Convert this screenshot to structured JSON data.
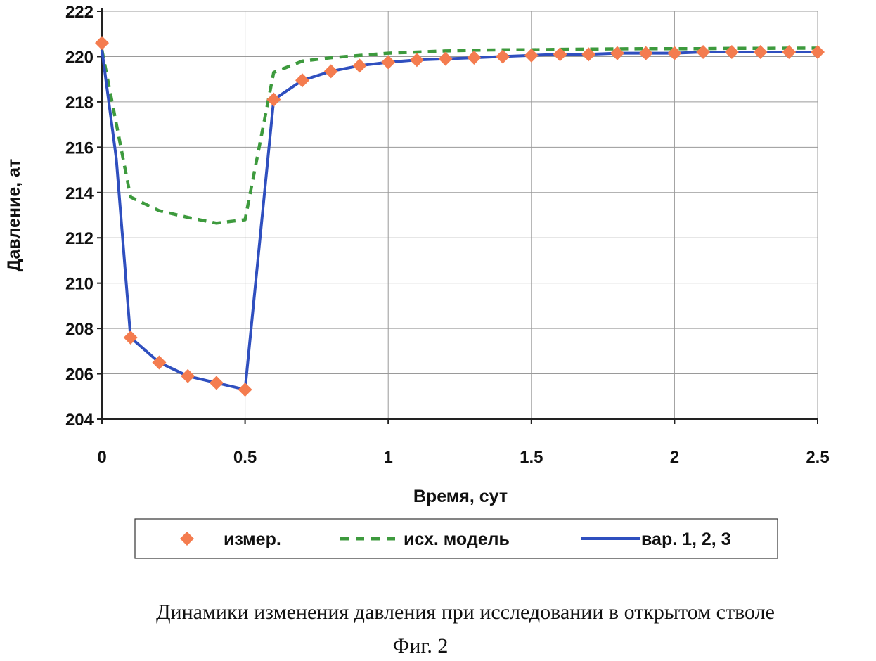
{
  "chart_data": {
    "type": "line",
    "title": "",
    "xlabel": "Время, сут",
    "ylabel": "Давление, ат",
    "xlim": [
      0,
      2.5
    ],
    "ylim": [
      204,
      222
    ],
    "x_ticks": [
      "0",
      "0.5",
      "1",
      "1.5",
      "2",
      "2.5"
    ],
    "y_ticks": [
      "204",
      "206",
      "208",
      "210",
      "212",
      "214",
      "216",
      "218",
      "220",
      "222"
    ],
    "grid": true,
    "legend_position": "bottom",
    "series": [
      {
        "name": "измер.",
        "style": "markers",
        "color": "#f47c4f",
        "x": [
          0,
          0.1,
          0.2,
          0.3,
          0.4,
          0.5,
          0.6,
          0.7,
          0.8,
          0.9,
          1.0,
          1.1,
          1.2,
          1.3,
          1.4,
          1.5,
          1.6,
          1.7,
          1.8,
          1.9,
          2.0,
          2.1,
          2.2,
          2.3,
          2.4,
          2.5
        ],
        "y": [
          220.6,
          207.6,
          206.5,
          205.9,
          205.6,
          205.3,
          218.1,
          218.95,
          219.35,
          219.6,
          219.75,
          219.85,
          219.9,
          219.95,
          220.0,
          220.05,
          220.1,
          220.1,
          220.15,
          220.15,
          220.15,
          220.2,
          220.2,
          220.2,
          220.2,
          220.2
        ]
      },
      {
        "name": "исх. модель",
        "style": "dashed",
        "color": "#3d9a3d",
        "x": [
          0,
          0.1,
          0.2,
          0.3,
          0.4,
          0.5,
          0.6,
          0.7,
          0.8,
          0.9,
          1.0,
          1.1,
          1.2,
          1.3,
          1.4,
          1.5,
          1.6,
          1.7,
          1.8,
          1.9,
          2.0,
          2.1,
          2.2,
          2.3,
          2.4,
          2.5
        ],
        "y": [
          220.3,
          213.8,
          213.2,
          212.9,
          212.65,
          212.8,
          219.3,
          219.8,
          219.95,
          220.05,
          220.15,
          220.2,
          220.25,
          220.28,
          220.3,
          220.3,
          220.32,
          220.33,
          220.34,
          220.35,
          220.35,
          220.35,
          220.36,
          220.36,
          220.37,
          220.37
        ]
      },
      {
        "name": "вар. 1, 2, 3",
        "style": "solid",
        "color": "#2f4fbf",
        "x": [
          0,
          0.05,
          0.1,
          0.2,
          0.3,
          0.4,
          0.5,
          0.6,
          0.7,
          0.8,
          0.9,
          1.0,
          1.1,
          1.2,
          1.3,
          1.4,
          1.5,
          1.6,
          1.7,
          1.8,
          1.9,
          2.0,
          2.1,
          2.2,
          2.3,
          2.4,
          2.5
        ],
        "y": [
          220.3,
          215.5,
          207.6,
          206.5,
          205.9,
          205.6,
          205.3,
          218.1,
          218.95,
          219.35,
          219.6,
          219.75,
          219.85,
          219.9,
          219.95,
          220.0,
          220.05,
          220.1,
          220.1,
          220.15,
          220.15,
          220.15,
          220.2,
          220.2,
          220.2,
          220.2,
          220.2
        ]
      }
    ]
  },
  "caption": {
    "line1": "Динамики изменения давления при исследовании в открытом стволе",
    "line2": "Фиг. 2"
  }
}
